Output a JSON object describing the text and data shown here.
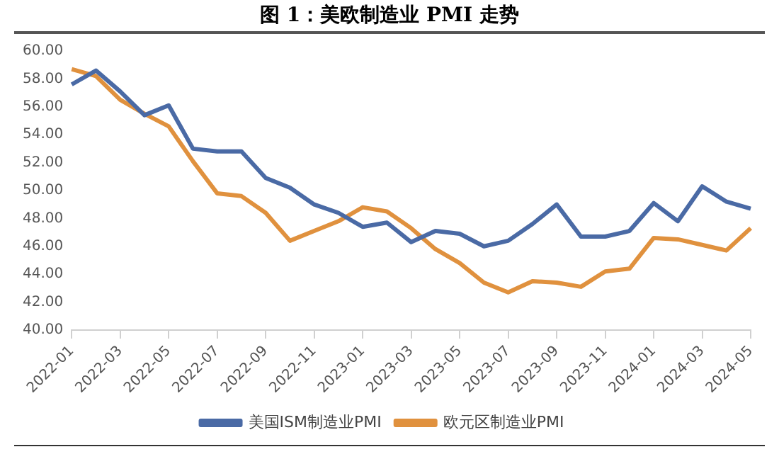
{
  "chart_data": {
    "type": "line",
    "title": "图 1：美欧制造业 PMI 走势",
    "categories": [
      "2022-01",
      null,
      "2022-03",
      null,
      "2022-05",
      null,
      "2022-07",
      null,
      "2022-09",
      null,
      "2022-11",
      null,
      "2023-01",
      null,
      "2023-03",
      null,
      "2023-05",
      null,
      "2023-07",
      null,
      "2023-09",
      null,
      "2023-11",
      null,
      "2024-01",
      null,
      "2024-03",
      null,
      "2024-05"
    ],
    "series": [
      {
        "name": "美国ISM制造业PMI",
        "color": "#4a6aa5",
        "values": [
          57.6,
          58.6,
          57.1,
          55.4,
          56.1,
          53.0,
          52.8,
          52.8,
          50.9,
          50.2,
          49.0,
          48.4,
          47.4,
          47.7,
          46.3,
          47.1,
          46.9,
          46.0,
          46.4,
          47.6,
          49.0,
          46.7,
          46.7,
          47.1,
          49.1,
          47.8,
          50.3,
          49.2,
          48.7
        ]
      },
      {
        "name": "欧元区制造业PMI",
        "color": "#e0913e",
        "values": [
          58.7,
          58.2,
          56.5,
          55.5,
          54.6,
          52.1,
          49.8,
          49.6,
          48.4,
          46.4,
          47.1,
          47.8,
          48.8,
          48.5,
          47.3,
          45.8,
          44.8,
          43.4,
          42.7,
          43.5,
          43.4,
          43.1,
          44.2,
          44.4,
          46.6,
          46.5,
          46.1,
          45.7,
          47.3
        ]
      }
    ],
    "ylim": [
      40,
      60
    ],
    "yticks": [
      {
        "value": 40,
        "label": "40.00"
      },
      {
        "value": 42,
        "label": "42.00"
      },
      {
        "value": 44,
        "label": "44.00"
      },
      {
        "value": 46,
        "label": "46.00"
      },
      {
        "value": 48,
        "label": "48.00"
      },
      {
        "value": 50,
        "label": "50.00"
      },
      {
        "value": 52,
        "label": "52.00"
      },
      {
        "value": 54,
        "label": "54.00"
      },
      {
        "value": 56,
        "label": "56.00"
      },
      {
        "value": 58,
        "label": "58.00"
      },
      {
        "value": 60,
        "label": "60.00"
      }
    ],
    "grid": false,
    "legend": "bottom",
    "marker": "none",
    "line_style": "solid"
  }
}
